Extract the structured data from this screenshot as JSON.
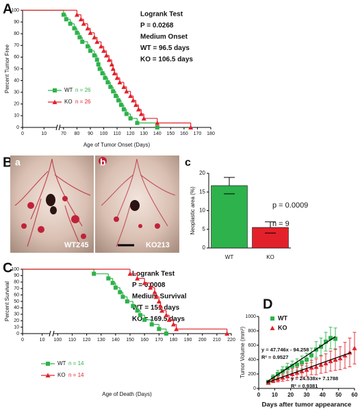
{
  "panel_labels": [
    "A",
    "B",
    "C",
    "D"
  ],
  "images": [
    {
      "label": "a",
      "caption": "WT245"
    },
    {
      "label": "b",
      "caption": "KO213"
    }
  ],
  "chart_data": [
    {
      "type": "line",
      "step": true,
      "ylabel": "Percent Tumor Free",
      "xlabel": "Age of Tumor Onset (Days)",
      "xlim": [
        0,
        180
      ],
      "xbreak": [
        16,
        67
      ],
      "xticks": [
        0,
        10,
        70,
        80,
        90,
        100,
        110,
        120,
        130,
        140,
        150,
        160,
        170,
        180
      ],
      "ylim": [
        0,
        100
      ],
      "yticks": [
        0,
        10,
        20,
        30,
        40,
        50,
        60,
        70,
        80,
        90,
        100
      ],
      "annotations": [
        "Logrank Test",
        "P = 0.0268",
        "Medium Onset",
        "WT = 96.5 days",
        "KO = 106.5 days"
      ],
      "series": [
        {
          "name": "WT",
          "n_label": "n = 26",
          "color": "#2eb24b",
          "marker": "square",
          "x": [
            0,
            70,
            72,
            75,
            78,
            80,
            82,
            84,
            88,
            90,
            93,
            95,
            96,
            97,
            99,
            101,
            103,
            105,
            107,
            109,
            111,
            113,
            115,
            117,
            120,
            125,
            140
          ],
          "values": [
            100,
            96.2,
            92.3,
            88.5,
            84.6,
            80.8,
            76.9,
            73.1,
            69.2,
            65.4,
            61.5,
            57.7,
            53.8,
            50,
            46.2,
            42.3,
            38.5,
            34.6,
            30.8,
            26.9,
            23.1,
            19.2,
            15.4,
            11.5,
            7.7,
            3.8,
            0
          ]
        },
        {
          "name": "KO",
          "n_label": "n = 26",
          "color": "#e3212b",
          "marker": "triangle",
          "x": [
            0,
            80,
            83,
            85,
            88,
            90,
            93,
            95,
            98,
            100,
            102,
            104,
            106,
            107,
            108,
            110,
            112,
            115,
            117,
            120,
            122,
            124,
            126,
            128,
            130,
            140,
            165
          ],
          "values": [
            100,
            96.2,
            92.3,
            88.5,
            84.6,
            80.8,
            76.9,
            73.1,
            69.2,
            65.4,
            61.5,
            57.7,
            53.8,
            50,
            46.2,
            42.3,
            38.5,
            34.6,
            30.8,
            26.9,
            23.1,
            19.2,
            15.4,
            11.5,
            7.7,
            3.8,
            0
          ]
        }
      ]
    },
    {
      "type": "bar",
      "panel": "c",
      "ylabel": "Neoplastic area (%)",
      "categories": [
        "WT",
        "KO"
      ],
      "values": [
        16.7,
        5.5
      ],
      "errors": [
        2.2,
        1.5
      ],
      "colors": [
        "#2eb24b",
        "#e3212b"
      ],
      "ylim": [
        0,
        20
      ],
      "yticks": [
        0,
        5,
        10,
        15,
        20
      ],
      "annotations": [
        "p = 0.0009",
        "n = 9"
      ]
    },
    {
      "type": "line",
      "step": true,
      "ylabel": "Percent Survival",
      "xlabel": "Age of Death (Days)",
      "xlim": [
        0,
        220
      ],
      "xbreak": [
        14,
        97
      ],
      "xticks": [
        0,
        10,
        100,
        110,
        120,
        130,
        140,
        150,
        160,
        170,
        180,
        190,
        200,
        210,
        220
      ],
      "ylim": [
        0,
        100
      ],
      "yticks": [
        0,
        10,
        20,
        30,
        40,
        50,
        60,
        70,
        80,
        90,
        100
      ],
      "annotations": [
        "Logrank Test",
        "P = 0.0008",
        "Medium Survival",
        "WT = 151 days",
        "KO = 169.5 days"
      ],
      "series": [
        {
          "name": "WT",
          "n_label": "n = 14",
          "color": "#2eb24b",
          "marker": "square",
          "x": [
            0,
            125,
            135,
            138,
            140,
            143,
            145,
            148,
            152,
            155,
            157,
            160,
            165,
            170,
            175
          ],
          "values": [
            100,
            92.9,
            85.7,
            78.6,
            71.4,
            64.3,
            57.1,
            50,
            42.9,
            35.7,
            28.6,
            21.4,
            14.3,
            7.1,
            0
          ]
        },
        {
          "name": "KO",
          "n_label": "n = 14",
          "color": "#e3212b",
          "marker": "triangle",
          "x": [
            0,
            150,
            155,
            160,
            164,
            167,
            168,
            170,
            171,
            172,
            175,
            177,
            180,
            182,
            217
          ],
          "values": [
            100,
            92.9,
            85.7,
            78.6,
            71.4,
            64.3,
            57.1,
            50,
            42.9,
            35.7,
            28.6,
            21.4,
            14.3,
            7.1,
            0
          ]
        }
      ]
    },
    {
      "type": "scatter",
      "ylabel": "Tumor Volume (mm³)",
      "xlabel": "Days after tumor appearance",
      "xlim": [
        0,
        60
      ],
      "xticks": [
        0,
        10,
        20,
        30,
        40,
        50,
        60
      ],
      "ylim": [
        0,
        1000
      ],
      "yticks": [
        0,
        200,
        400,
        600,
        800,
        1000
      ],
      "series": [
        {
          "name": "WT",
          "color": "#2eb24b",
          "marker": "square",
          "x": [
            6,
            9,
            12,
            15,
            18,
            21,
            24,
            27,
            30,
            33,
            36,
            39,
            42,
            45,
            48
          ],
          "values": [
            90,
            150,
            200,
            240,
            280,
            310,
            330,
            360,
            400,
            460,
            540,
            580,
            650,
            700,
            690
          ],
          "errors": [
            20,
            40,
            50,
            60,
            70,
            70,
            80,
            90,
            90,
            100,
            110,
            120,
            130,
            150,
            150
          ]
        },
        {
          "name": "KO",
          "color": "#e3212b",
          "marker": "triangle",
          "x": [
            6,
            9,
            12,
            15,
            18,
            21,
            24,
            27,
            30,
            33,
            36,
            39,
            42,
            45,
            48,
            51,
            54,
            57,
            60
          ],
          "values": [
            80,
            110,
            130,
            150,
            170,
            200,
            220,
            240,
            260,
            290,
            300,
            330,
            350,
            380,
            400,
            420,
            460,
            500,
            560
          ],
          "errors": [
            20,
            30,
            40,
            50,
            60,
            70,
            70,
            80,
            90,
            100,
            110,
            120,
            130,
            140,
            150,
            160,
            180,
            200,
            220
          ]
        }
      ],
      "fits": [
        {
          "label": "y = 47.746x - 94.258",
          "r2_label": "R² = 0.9527",
          "x": [
            5,
            48
          ],
          "values": [
            90,
            720
          ]
        },
        {
          "label": "y = 24.538x+ 7.1788",
          "r2_label": "R² = 0.9381",
          "x": [
            5,
            58
          ],
          "values": [
            80,
            500
          ]
        }
      ]
    }
  ]
}
